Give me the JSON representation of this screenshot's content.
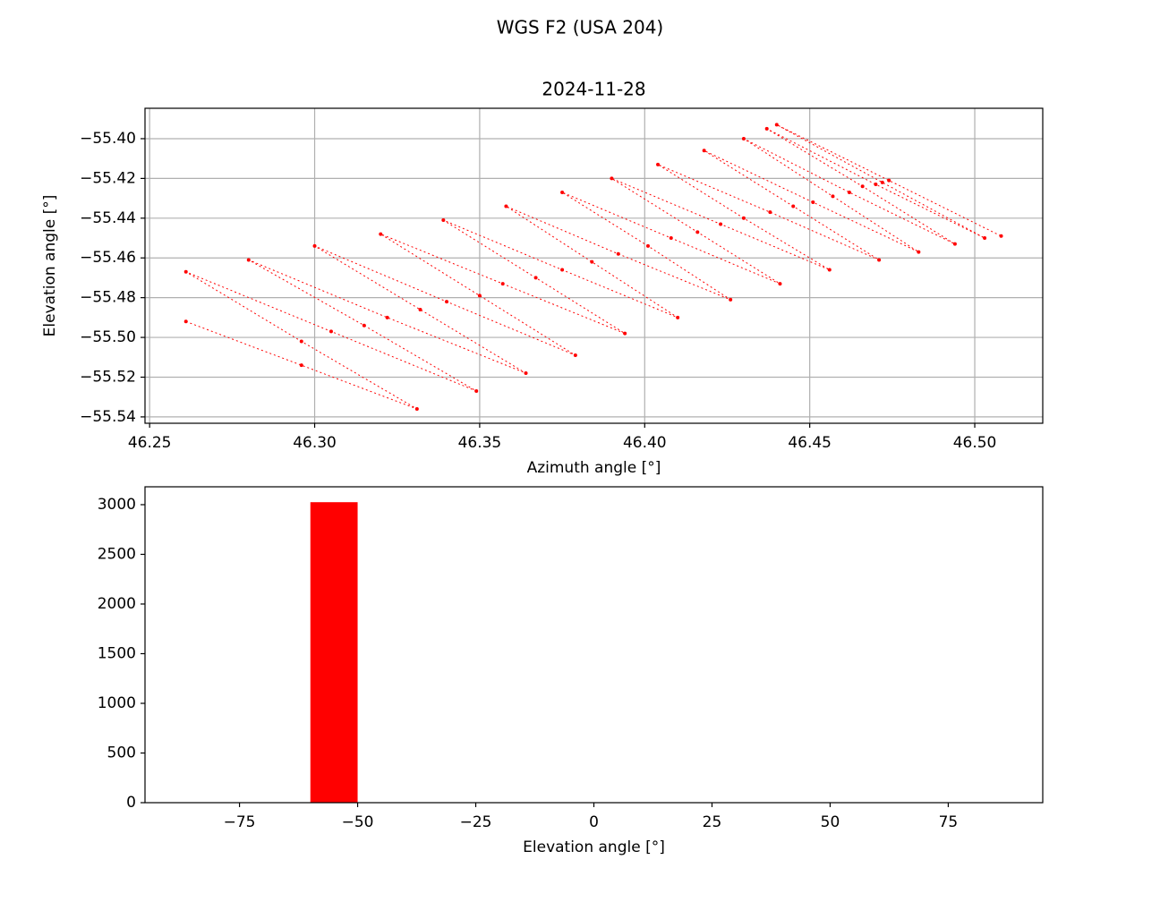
{
  "title": "WGS F2 (USA 204)",
  "chart_data": [
    {
      "type": "scatter",
      "title": "2024-11-28",
      "x_label": "Azimuth angle [°]",
      "y_label": "Elevation angle [°]",
      "color": "#ff0000",
      "grid": true,
      "x": [
        46.261,
        46.296,
        46.331,
        46.296,
        46.261,
        46.305,
        46.349,
        46.315,
        46.28,
        46.322,
        46.364,
        46.332,
        46.3,
        46.34,
        46.379,
        46.35,
        46.32,
        46.357,
        46.394,
        46.367,
        46.339,
        46.375,
        46.41,
        46.384,
        46.358,
        46.392,
        46.426,
        46.401,
        46.375,
        46.408,
        46.441,
        46.416,
        46.39,
        46.423,
        46.456,
        46.43,
        46.404,
        46.438,
        46.471,
        46.445,
        46.418,
        46.451,
        46.483,
        46.457,
        46.43,
        46.462,
        46.494,
        46.466,
        46.437,
        46.47,
        46.503,
        46.472,
        46.44,
        46.474,
        46.508
      ],
      "y": [
        -55.492,
        -55.514,
        -55.536,
        -55.502,
        -55.467,
        -55.497,
        -55.527,
        -55.494,
        -55.461,
        -55.49,
        -55.518,
        -55.486,
        -55.454,
        -55.482,
        -55.509,
        -55.479,
        -55.448,
        -55.473,
        -55.498,
        -55.47,
        -55.441,
        -55.466,
        -55.49,
        -55.462,
        -55.434,
        -55.458,
        -55.481,
        -55.454,
        -55.427,
        -55.45,
        -55.473,
        -55.447,
        -55.42,
        -55.443,
        -55.466,
        -55.44,
        -55.413,
        -55.437,
        -55.461,
        -55.434,
        -55.406,
        -55.432,
        -55.457,
        -55.429,
        -55.4,
        -55.427,
        -55.453,
        -55.424,
        -55.395,
        -55.423,
        -55.45,
        -55.422,
        -55.393,
        -55.421,
        -55.449
      ],
      "xlim": [
        46.2486,
        46.5206
      ],
      "ylim": [
        -55.5432,
        -55.3847
      ],
      "xticks": [
        46.25,
        {
          "value": 46.3,
          "label": "46.30"
        },
        46.35,
        {
          "value": 46.4,
          "label": "46.40"
        },
        46.45,
        {
          "value": 46.5,
          "label": "46.50"
        }
      ],
      "yticks": [
        {
          "value": -55.4,
          "label": "−55.40"
        },
        {
          "value": -55.42,
          "label": "−55.42"
        },
        {
          "value": -55.44,
          "label": "−55.44"
        },
        {
          "value": -55.46,
          "label": "−55.46"
        },
        {
          "value": -55.48,
          "label": "−55.48"
        },
        {
          "value": -55.5,
          "label": "−55.50"
        },
        {
          "value": -55.52,
          "label": "−55.52"
        },
        {
          "value": -55.54,
          "label": "−55.54"
        }
      ]
    },
    {
      "type": "histogram",
      "x_label": "Elevation angle [°]",
      "color": "#ff0000",
      "grid": false,
      "bins": [
        -90,
        -80,
        -70,
        -60,
        -50,
        -40,
        -30,
        -20,
        -10,
        0,
        10,
        20,
        30,
        40,
        50,
        60,
        70,
        80,
        90
      ],
      "values": [
        0,
        0,
        0,
        3025,
        0,
        0,
        0,
        0,
        0,
        0,
        0,
        0,
        0,
        0,
        0,
        0,
        0,
        0
      ],
      "xlim": [
        -95,
        95
      ],
      "ylim": [
        0,
        3180
      ],
      "xticks": [
        {
          "value": -75,
          "label": "−75"
        },
        {
          "value": -50,
          "label": "−50"
        },
        {
          "value": -25,
          "label": "−25"
        },
        0,
        25,
        50,
        75
      ],
      "yticks": [
        0,
        500,
        1000,
        1500,
        2000,
        2500,
        3000
      ]
    }
  ]
}
